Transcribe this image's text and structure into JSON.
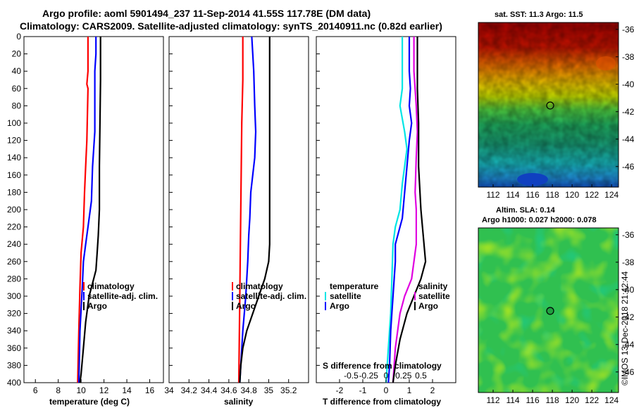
{
  "title_line1": "Argo profile: aoml 5901494_237 11-Sep-2014 41.55S 117.78E (DM data)",
  "title_line2": "Climatology: CARS2009. Satellite-adjusted climatology: synTS_20140911.nc (0.82d earlier)",
  "colors": {
    "climatology": "#ff0000",
    "satellite": "#0000ff",
    "argo": "#000000",
    "sat_diff_t": "#00e5e5",
    "sat_diff_s": "#e000e0"
  },
  "chart_data": [
    {
      "id": "temperature",
      "type": "line",
      "xlabel": "temperature (deg C)",
      "ylabel": "",
      "xlim": [
        5,
        17.2
      ],
      "ylim": [
        400,
        0
      ],
      "xticks": [
        "6",
        "8",
        "10",
        "12",
        "14",
        "16"
      ],
      "yticks": [
        "0",
        "20",
        "40",
        "60",
        "80",
        "100",
        "120",
        "140",
        "160",
        "180",
        "200",
        "220",
        "240",
        "260",
        "280",
        "300",
        "320",
        "340",
        "360",
        "380",
        "400"
      ],
      "legend": [
        "climatology",
        "satellite-adj. clim.",
        "Argo"
      ],
      "series": [
        {
          "name": "climatology",
          "color": "red",
          "points": [
            [
              10.6,
              0
            ],
            [
              10.6,
              40
            ],
            [
              10.5,
              55
            ],
            [
              10.6,
              60
            ],
            [
              10.5,
              120
            ],
            [
              10.4,
              150
            ],
            [
              10.3,
              180
            ],
            [
              10.2,
              220
            ],
            [
              10.0,
              250
            ],
            [
              9.9,
              290
            ],
            [
              9.8,
              340
            ],
            [
              9.7,
              400
            ]
          ]
        },
        {
          "name": "satellite-adj. clim.",
          "color": "blue",
          "points": [
            [
              11.3,
              0
            ],
            [
              11.3,
              20
            ],
            [
              11.2,
              40
            ],
            [
              11.2,
              80
            ],
            [
              11.2,
              110
            ],
            [
              11.0,
              150
            ],
            [
              10.9,
              190
            ],
            [
              10.6,
              220
            ],
            [
              10.4,
              240
            ],
            [
              10.2,
              260
            ],
            [
              10.1,
              290
            ],
            [
              9.9,
              340
            ],
            [
              9.8,
              400
            ]
          ]
        },
        {
          "name": "Argo",
          "color": "black",
          "points": [
            [
              11.7,
              0
            ],
            [
              11.7,
              50
            ],
            [
              11.6,
              150
            ],
            [
              11.6,
              200
            ],
            [
              11.5,
              230
            ],
            [
              11.4,
              250
            ],
            [
              11.3,
              270
            ],
            [
              11.0,
              285
            ],
            [
              10.7,
              300
            ],
            [
              10.4,
              330
            ],
            [
              10.2,
              360
            ],
            [
              10.0,
              390
            ],
            [
              9.9,
              400
            ]
          ]
        }
      ]
    },
    {
      "id": "salinity",
      "type": "line",
      "xlabel": "salinity",
      "ylabel": "",
      "xlim": [
        34,
        35.4
      ],
      "ylim": [
        400,
        0
      ],
      "xticks": [
        "34",
        "34.2",
        "34.4",
        "34.6",
        "34.8",
        "35",
        "35.2"
      ],
      "legend": [
        "climatology",
        "satellite-adj. clim.",
        "Argo"
      ],
      "series": [
        {
          "name": "climatology",
          "color": "red",
          "points": [
            [
              34.74,
              0
            ],
            [
              34.74,
              50
            ],
            [
              34.73,
              100
            ],
            [
              34.72,
              200
            ],
            [
              34.71,
              300
            ],
            [
              34.7,
              400
            ]
          ]
        },
        {
          "name": "satellite-adj. clim.",
          "color": "blue",
          "points": [
            [
              34.83,
              0
            ],
            [
              34.84,
              20
            ],
            [
              34.85,
              40
            ],
            [
              34.86,
              80
            ],
            [
              34.87,
              110
            ],
            [
              34.86,
              140
            ],
            [
              34.84,
              160
            ],
            [
              34.82,
              180
            ],
            [
              34.81,
              210
            ],
            [
              34.8,
              230
            ],
            [
              34.79,
              260
            ],
            [
              34.77,
              300
            ],
            [
              34.74,
              340
            ],
            [
              34.72,
              380
            ],
            [
              34.71,
              400
            ]
          ]
        },
        {
          "name": "Argo",
          "color": "black",
          "points": [
            [
              35.01,
              0
            ],
            [
              35.01,
              150
            ],
            [
              35.01,
              200
            ],
            [
              35.01,
              240
            ],
            [
              35.0,
              260
            ],
            [
              34.96,
              280
            ],
            [
              34.9,
              300
            ],
            [
              34.84,
              320
            ],
            [
              34.78,
              340
            ],
            [
              34.74,
              360
            ],
            [
              34.72,
              380
            ],
            [
              34.71,
              400
            ]
          ]
        }
      ]
    },
    {
      "id": "difference",
      "type": "line",
      "xlabel": "T difference from climatology",
      "xlabel2": "S difference from climatology",
      "xlim": [
        -3,
        3
      ],
      "ylim": [
        400,
        0
      ],
      "xticks": [
        "-2",
        "-1",
        "0",
        "1",
        "2"
      ],
      "xticks2": [
        "-0.5",
        "-0.25",
        "0",
        "0.25",
        "0.5"
      ],
      "legend_left_title": "temperature",
      "legend_right_title": "salinity",
      "legend_left": [
        "satellite",
        "Argo"
      ],
      "legend_right": [
        "satellite",
        "Argo"
      ],
      "series": [
        {
          "name": "T satellite",
          "color": "cyan",
          "points": [
            [
              0.7,
              0
            ],
            [
              0.7,
              40
            ],
            [
              0.7,
              60
            ],
            [
              0.6,
              80
            ],
            [
              0.8,
              110
            ],
            [
              0.9,
              130
            ],
            [
              0.8,
              150
            ],
            [
              0.7,
              170
            ],
            [
              0.6,
              200
            ],
            [
              0.4,
              220
            ],
            [
              0.3,
              240
            ],
            [
              0.25,
              280
            ],
            [
              0.2,
              320
            ],
            [
              0.1,
              360
            ],
            [
              0.0,
              400
            ]
          ]
        },
        {
          "name": "T Argo",
          "color": "blue",
          "points": [
            [
              1.0,
              0
            ],
            [
              1.0,
              40
            ],
            [
              1.05,
              60
            ],
            [
              1.0,
              80
            ],
            [
              1.1,
              100
            ],
            [
              1.0,
              120
            ],
            [
              0.9,
              150
            ],
            [
              0.8,
              180
            ],
            [
              0.7,
              210
            ],
            [
              0.5,
              230
            ],
            [
              0.4,
              240
            ],
            [
              0.4,
              260
            ],
            [
              0.3,
              300
            ],
            [
              0.2,
              340
            ],
            [
              0.15,
              380
            ],
            [
              0.1,
              400
            ]
          ]
        },
        {
          "name": "S satellite",
          "color": "magenta",
          "points": [
            [
              1.2,
              0
            ],
            [
              1.2,
              40
            ],
            [
              1.3,
              80
            ],
            [
              1.35,
              110
            ],
            [
              1.3,
              140
            ],
            [
              1.25,
              180
            ],
            [
              1.3,
              200
            ],
            [
              1.3,
              240
            ],
            [
              1.2,
              260
            ],
            [
              1.1,
              280
            ],
            [
              0.8,
              300
            ],
            [
              0.6,
              320
            ],
            [
              0.4,
              360
            ],
            [
              0.3,
              400
            ]
          ]
        },
        {
          "name": "S Argo",
          "color": "black",
          "points": [
            [
              1.35,
              0
            ],
            [
              1.35,
              60
            ],
            [
              1.4,
              100
            ],
            [
              1.4,
              150
            ],
            [
              1.5,
              200
            ],
            [
              1.6,
              230
            ],
            [
              1.7,
              260
            ],
            [
              1.5,
              280
            ],
            [
              1.2,
              300
            ],
            [
              0.9,
              320
            ],
            [
              0.6,
              350
            ],
            [
              0.4,
              380
            ],
            [
              0.3,
              400
            ]
          ]
        }
      ]
    },
    {
      "id": "sst-map",
      "type": "heatmap",
      "title": "sat. SST: 11.3  Argo: 11.5",
      "xticks": [
        "112",
        "114",
        "116",
        "118",
        "120",
        "122",
        "124"
      ],
      "yticks": [
        "-36",
        "-38",
        "-40",
        "-42",
        "-44",
        "-46"
      ],
      "xlim": [
        110.5,
        124.7
      ],
      "ylim": [
        -47.5,
        -35.5
      ],
      "marker": [
        117.78,
        -41.55
      ]
    },
    {
      "id": "sla-map",
      "type": "heatmap",
      "title_line1": "Altim. SLA: 0.14",
      "title_line2": "Argo h1000: 0.027 h2000: 0.078",
      "xticks": [
        "112",
        "114",
        "116",
        "118",
        "120",
        "122",
        "124"
      ],
      "yticks": [
        "-36",
        "-38",
        "-40",
        "-42",
        "-44",
        "-46"
      ],
      "xlim": [
        110.5,
        124.7
      ],
      "ylim": [
        -47.5,
        -35.5
      ],
      "marker": [
        117.78,
        -41.55
      ]
    }
  ],
  "footer": "©IMOS 13-Dec-2018 21:42:44"
}
